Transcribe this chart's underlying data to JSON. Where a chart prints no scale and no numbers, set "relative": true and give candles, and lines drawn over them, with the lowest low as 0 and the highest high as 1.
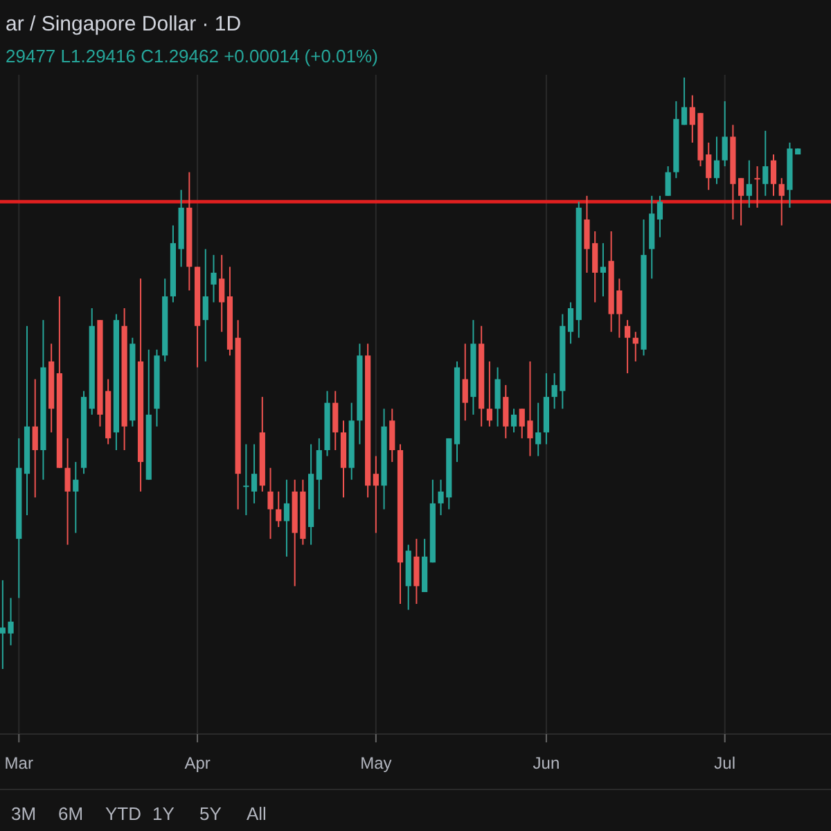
{
  "chart_data": {
    "type": "candlestick",
    "title": "ar / Singapore Dollar · 1D",
    "subtitle": "29477 L1.29416 C1.29462 +0.00014 (+0.01%)",
    "relative": true,
    "grid": "x",
    "colors": [
      "#26a69a",
      "#26a69a",
      "#26a69a",
      "#26a69a",
      "#ef5350",
      "#26a69a",
      "#ef5350",
      "#ef5350",
      "#ef5350",
      "#26a69a",
      "#26a69a",
      "#26a69a",
      "#ef5350",
      "#ef5350",
      "#26a69a",
      "#ef5350",
      "#26a69a",
      "#ef5350",
      "#26a69a",
      "#26a69a",
      "#26a69a",
      "#26a69a",
      "#26a69a",
      "#ef5350",
      "#ef5350",
      "#26a69a",
      "#26a69a",
      "#ef5350",
      "#ef5350",
      "#ef5350",
      "#26a69a",
      "#26a69a",
      "#ef5350",
      "#ef5350",
      "#ef5350",
      "#26a69a",
      "#ef5350",
      "#ef5350",
      "#26a69a",
      "#26a69a",
      "#26a69a",
      "#ef5350",
      "#ef5350",
      "#26a69a",
      "#26a69a",
      "#ef5350",
      "#ef5350",
      "#26a69a",
      "#ef5350",
      "#ef5350",
      "#26a69a",
      "#ef5350",
      "#26a69a",
      "#26a69a",
      "#26a69a",
      "#26a69a",
      "#26a69a",
      "#ef5350",
      "#26a69a",
      "#ef5350",
      "#ef5350",
      "#26a69a",
      "#ef5350",
      "#26a69a",
      "#ef5350",
      "#ef5350",
      "#26a69a",
      "#26a69a",
      "#26a69a",
      "#26a69a",
      "#26a69a",
      "#26a69a",
      "#ef5350",
      "#ef5350",
      "#26a69a",
      "#ef5350",
      "#ef5350",
      "#ef5350",
      "#ef5350",
      "#26a69a",
      "#26a69a",
      "#26a69a",
      "#26a69a",
      "#26a69a",
      "#26a69a",
      "#ef5350",
      "#ef5350",
      "#ef5350",
      "#26a69a",
      "#26a69a",
      "#ef5350",
      "#ef5350",
      "#26a69a",
      "#ef5350",
      "#26a69a",
      "#ef5350",
      "#ef5350",
      "#26a69a",
      "#26a69a"
    ],
    "categories": [
      null,
      null,
      "Mar",
      null,
      null,
      null,
      null,
      null,
      null,
      null,
      null,
      null,
      null,
      null,
      null,
      null,
      null,
      null,
      null,
      null,
      null,
      null,
      null,
      null,
      "Apr",
      null,
      null,
      null,
      null,
      null,
      null,
      null,
      null,
      null,
      null,
      null,
      null,
      null,
      null,
      null,
      null,
      null,
      null,
      null,
      null,
      null,
      "May",
      null,
      null,
      null,
      null,
      null,
      null,
      null,
      null,
      null,
      null,
      null,
      null,
      null,
      null,
      null,
      null,
      null,
      null,
      null,
      null,
      "Jun",
      null,
      null,
      null,
      null,
      null,
      null,
      null,
      null,
      null,
      null,
      null,
      null,
      null,
      null,
      null,
      null,
      null,
      null,
      null,
      null,
      null,
      "Jul",
      null,
      null,
      null,
      null,
      null,
      null,
      null,
      null,
      null
    ],
    "ohlc": [
      [
        0.06,
        0.15,
        0,
        0.07
      ],
      [
        0.06,
        0.12,
        0.04,
        0.08
      ],
      [
        0.22,
        0.39,
        0.12,
        0.34
      ],
      [
        0.33,
        0.58,
        0.26,
        0.41
      ],
      [
        0.41,
        0.49,
        0.29,
        0.37
      ],
      [
        0.37,
        0.59,
        0.32,
        0.51
      ],
      [
        0.52,
        0.55,
        0.4,
        0.44
      ],
      [
        0.5,
        0.63,
        0.34,
        0.34
      ],
      [
        0.34,
        0.39,
        0.21,
        0.3
      ],
      [
        0.3,
        0.35,
        0.23,
        0.32
      ],
      [
        0.34,
        0.47,
        0.33,
        0.46
      ],
      [
        0.44,
        0.61,
        0.43,
        0.58
      ],
      [
        0.59,
        0.59,
        0.41,
        0.43
      ],
      [
        0.47,
        0.49,
        0.38,
        0.39
      ],
      [
        0.4,
        0.6,
        0.37,
        0.59
      ],
      [
        0.58,
        0.61,
        0.37,
        0.41
      ],
      [
        0.42,
        0.56,
        0.41,
        0.55
      ],
      [
        0.52,
        0.66,
        0.3,
        0.35
      ],
      [
        0.32,
        0.54,
        0.32,
        0.43
      ],
      [
        0.44,
        0.54,
        0.41,
        0.53
      ],
      [
        0.53,
        0.66,
        0.52,
        0.63
      ],
      [
        0.63,
        0.75,
        0.62,
        0.72
      ],
      [
        0.71,
        0.81,
        0.68,
        0.78
      ],
      [
        0.78,
        0.84,
        0.64,
        0.68
      ],
      [
        0.68,
        0.68,
        0.51,
        0.58
      ],
      [
        0.59,
        0.71,
        0.52,
        0.63
      ],
      [
        0.65,
        0.7,
        0.62,
        0.67
      ],
      [
        0.66,
        0.7,
        0.57,
        0.62
      ],
      [
        0.63,
        0.68,
        0.53,
        0.54
      ],
      [
        0.56,
        0.59,
        0.27,
        0.33
      ],
      [
        0.31,
        0.38,
        0.26,
        0.31
      ],
      [
        0.3,
        0.38,
        0.28,
        0.33
      ],
      [
        0.4,
        0.46,
        0.3,
        0.31
      ],
      [
        0.3,
        0.34,
        0.22,
        0.27
      ],
      [
        0.27,
        0.3,
        0.24,
        0.25
      ],
      [
        0.25,
        0.32,
        0.19,
        0.28
      ],
      [
        0.3,
        0.32,
        0.14,
        0.23
      ],
      [
        0.3,
        0.32,
        0.21,
        0.22
      ],
      [
        0.24,
        0.38,
        0.21,
        0.33
      ],
      [
        0.32,
        0.39,
        0.27,
        0.37
      ],
      [
        0.37,
        0.47,
        0.36,
        0.45
      ],
      [
        0.45,
        0.47,
        0.37,
        0.4
      ],
      [
        0.4,
        0.42,
        0.29,
        0.34
      ],
      [
        0.34,
        0.45,
        0.32,
        0.42
      ],
      [
        0.42,
        0.55,
        0.38,
        0.53
      ],
      [
        0.53,
        0.55,
        0.29,
        0.31
      ],
      [
        0.33,
        0.36,
        0.23,
        0.31
      ],
      [
        0.31,
        0.44,
        0.27,
        0.41
      ],
      [
        0.42,
        0.44,
        0.35,
        0.37
      ],
      [
        0.37,
        0.38,
        0.11,
        0.18
      ],
      [
        0.14,
        0.21,
        0.1,
        0.2
      ],
      [
        0.19,
        0.22,
        0.11,
        0.14
      ],
      [
        0.13,
        0.22,
        0.13,
        0.19
      ],
      [
        0.18,
        0.32,
        0.18,
        0.28
      ],
      [
        0.28,
        0.32,
        0.26,
        0.3
      ],
      [
        0.29,
        0.39,
        0.27,
        0.39
      ],
      [
        0.38,
        0.52,
        0.35,
        0.51
      ],
      [
        0.49,
        0.55,
        0.42,
        0.45
      ],
      [
        0.46,
        0.59,
        0.43,
        0.55
      ],
      [
        0.55,
        0.58,
        0.41,
        0.44
      ],
      [
        0.44,
        0.52,
        0.41,
        0.42
      ],
      [
        0.44,
        0.51,
        0.41,
        0.49
      ],
      [
        0.46,
        0.48,
        0.39,
        0.41
      ],
      [
        0.41,
        0.44,
        0.4,
        0.43
      ],
      [
        0.44,
        0.44,
        0.39,
        0.41
      ],
      [
        0.42,
        0.52,
        0.36,
        0.39
      ],
      [
        0.38,
        0.45,
        0.36,
        0.4
      ],
      [
        0.4,
        0.5,
        0.38,
        0.46
      ],
      [
        0.46,
        0.5,
        0.44,
        0.48
      ],
      [
        0.47,
        0.6,
        0.44,
        0.58
      ],
      [
        0.57,
        0.62,
        0.55,
        0.61
      ],
      [
        0.59,
        0.79,
        0.56,
        0.78
      ],
      [
        0.76,
        0.8,
        0.67,
        0.71
      ],
      [
        0.72,
        0.74,
        0.62,
        0.67
      ],
      [
        0.67,
        0.72,
        0.63,
        0.68
      ],
      [
        0.69,
        0.74,
        0.57,
        0.6
      ],
      [
        0.64,
        0.66,
        0.56,
        0.6
      ],
      [
        0.58,
        0.59,
        0.5,
        0.56
      ],
      [
        0.56,
        0.57,
        0.52,
        0.55
      ],
      [
        0.54,
        0.76,
        0.53,
        0.7
      ],
      [
        0.71,
        0.8,
        0.66,
        0.77
      ],
      [
        0.76,
        0.8,
        0.73,
        0.79
      ],
      [
        0.8,
        0.85,
        0.8,
        0.84
      ],
      [
        0.84,
        0.96,
        0.83,
        0.93
      ],
      [
        0.92,
        1.0,
        0.92,
        0.95
      ],
      [
        0.95,
        0.97,
        0.89,
        0.92
      ],
      [
        0.94,
        0.94,
        0.85,
        0.86
      ],
      [
        0.87,
        0.89,
        0.81,
        0.83
      ],
      [
        0.83,
        0.9,
        0.82,
        0.86
      ],
      [
        0.86,
        0.96,
        0.85,
        0.9
      ],
      [
        0.9,
        0.92,
        0.76,
        0.82
      ],
      [
        0.83,
        0.83,
        0.75,
        0.8
      ],
      [
        0.8,
        0.86,
        0.78,
        0.82
      ],
      [
        0.83,
        0.85,
        0.78,
        0.83
      ],
      [
        0.82,
        0.91,
        0.8,
        0.85
      ],
      [
        0.86,
        0.87,
        0.8,
        0.82
      ],
      [
        0.82,
        0.83,
        0.75,
        0.8
      ],
      [
        0.81,
        0.89,
        0.78,
        0.88
      ],
      [
        0.87,
        0.88,
        0.87,
        0.88
      ]
    ],
    "ref_lines": [
      {
        "axis": "y",
        "value": 0.79,
        "color": "#e02020"
      }
    ],
    "annotations": [
      "3M",
      "6M",
      "YTD",
      "1Y",
      "5Y",
      "All"
    ]
  }
}
